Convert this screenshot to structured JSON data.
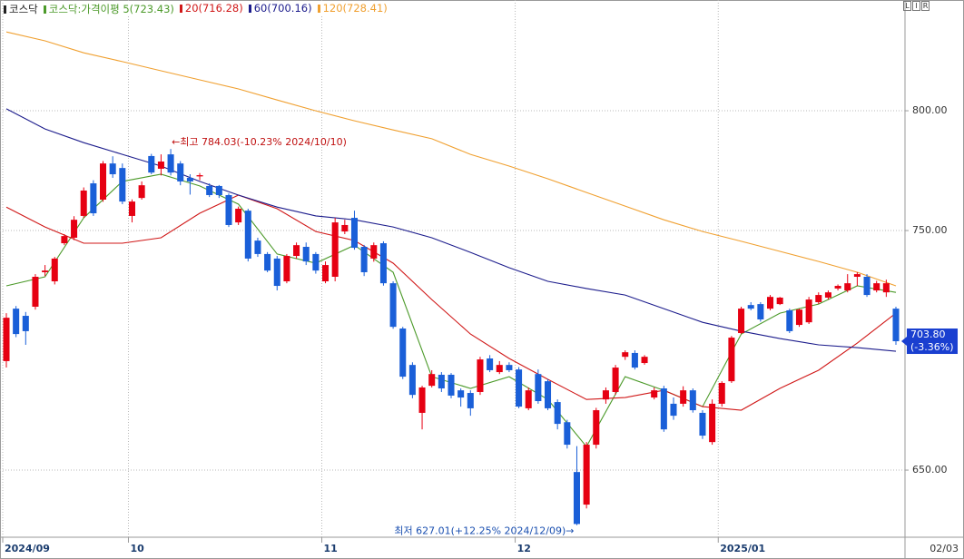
{
  "chart_data": {
    "type": "candlestick",
    "title": "코스닥",
    "toolbar": [
      "L",
      "I",
      "R"
    ],
    "categories": [
      "2024/09",
      null,
      null,
      null,
      null,
      null,
      null,
      null,
      null,
      null,
      null,
      null,
      null,
      "10",
      null,
      null,
      null,
      null,
      null,
      null,
      null,
      null,
      null,
      null,
      null,
      null,
      null,
      null,
      null,
      null,
      null,
      null,
      null,
      "11",
      null,
      null,
      null,
      null,
      null,
      null,
      null,
      null,
      null,
      null,
      null,
      null,
      null,
      null,
      null,
      null,
      null,
      null,
      null,
      "12",
      null,
      null,
      null,
      null,
      null,
      null,
      null,
      null,
      null,
      null,
      null,
      null,
      null,
      null,
      null,
      null,
      null,
      null,
      null,
      null,
      "2025/01",
      null,
      null,
      null,
      null,
      null,
      null,
      null,
      null,
      null,
      null,
      null,
      null,
      null,
      null,
      null,
      null,
      null,
      "02/03"
    ],
    "open": [
      695.5,
      717.4,
      714.4,
      718.2,
      732.6,
      728.8,
      744.7,
      747.0,
      756.1,
      769.7,
      762.9,
      778.0,
      776.1,
      756.1,
      763.6,
      781.1,
      775.8,
      781.8,
      778.0,
      772.0,
      772.6,
      768.6,
      768.6,
      764.8,
      753.4,
      758.3,
      745.8,
      740.2,
      738.3,
      728.8,
      739.4,
      743.2,
      740.2,
      728.8,
      730.7,
      749.6,
      755.3,
      743.2,
      738.3,
      744.7,
      728.0,
      709.1,
      693.9,
      673.9,
      685.2,
      689.8,
      689.8,
      683.3,
      682.2,
      682.6,
      696.6,
      690.9,
      693.9,
      692.0,
      675.8,
      690.1,
      687.1,
      678.4,
      670.0,
      649.2,
      635.6,
      660.6,
      679.5,
      682.6,
      697.3,
      698.9,
      694.7,
      680.3,
      684.1,
      677.7,
      677.7,
      683.3,
      673.9,
      661.7,
      677.7,
      687.1,
      707.2,
      718.9,
      719.3,
      717.4,
      719.3,
      716.7,
      710.6,
      711.7,
      720.1,
      722.0,
      725.8,
      725.0,
      730.7,
      730.7,
      725.0,
      724.2,
      717.4
    ],
    "high": [
      715.5,
      718.5,
      716,
      731.8,
      735.6,
      739,
      748.5,
      756,
      768,
      771,
      779,
      781,
      778,
      763,
      770.5,
      782,
      781.8,
      784.03,
      779,
      773.5,
      774,
      769.7,
      769,
      765.5,
      760,
      759.1,
      747,
      741,
      739.4,
      740.2,
      745,
      745,
      741,
      737.1,
      755.3,
      754.5,
      758.3,
      744,
      745,
      745.5,
      728.8,
      709.8,
      695,
      685.2,
      691.7,
      690.9,
      690.5,
      684.1,
      683.3,
      697.3,
      698,
      695.5,
      695,
      693,
      684.5,
      692,
      688,
      679.5,
      671,
      660,
      661.7,
      676,
      684.5,
      693.9,
      700,
      700,
      698,
      684.5,
      685.2,
      680.3,
      685,
      684.1,
      675,
      679.5,
      687.1,
      706,
      718.2,
      720.1,
      720.1,
      723.1,
      722.3,
      717.4,
      717.4,
      722.3,
      724.2,
      725,
      727.5,
      731.8,
      732.6,
      731.8,
      729,
      729.5,
      718.2
    ],
    "low": [
      692.8,
      705.5,
      702.3,
      717,
      731,
      727.5,
      743.9,
      746,
      755.3,
      756.1,
      762,
      772,
      761,
      753.4,
      762.9,
      773.5,
      773,
      773,
      768.9,
      765,
      771,
      764,
      763.6,
      751.5,
      752.3,
      737.1,
      739,
      732.6,
      725,
      728,
      738.3,
      735.6,
      732,
      728,
      728.8,
      748.5,
      742,
      731,
      737,
      727,
      709,
      688,
      680,
      667,
      684.5,
      682.6,
      680,
      676.5,
      672.7,
      681.4,
      690.9,
      690.1,
      690.9,
      675.8,
      675,
      677.7,
      675,
      667,
      659,
      627.01,
      634,
      659,
      677.7,
      681.4,
      696,
      692,
      694,
      679.5,
      666,
      671,
      676.5,
      674,
      663,
      660.6,
      676.5,
      686.4,
      706.8,
      716.7,
      712,
      716.7,
      718.9,
      707.2,
      709.8,
      711,
      719.3,
      721.2,
      725,
      724.2,
      726.9,
      722.3,
      724.2,
      722.3,
      702.3
    ],
    "close": [
      713.6,
      706.8,
      708.0,
      730.7,
      733.3,
      738.3,
      747.7,
      754.5,
      766.7,
      757.2,
      778.0,
      773.5,
      762.1,
      762.1,
      768.9,
      774.2,
      778.8,
      774.2,
      770.5,
      770.5,
      773.1,
      764.8,
      764.8,
      752.3,
      759.1,
      738.3,
      740.2,
      733.3,
      726.9,
      739.4,
      743.9,
      737.1,
      733.3,
      735.6,
      753.4,
      752.3,
      742.8,
      732.6,
      743.9,
      728.0,
      709.8,
      689.0,
      681.4,
      684.5,
      690.1,
      684.1,
      681.1,
      680.3,
      675.8,
      696.2,
      691.7,
      693.9,
      691.7,
      676.5,
      683.3,
      678.8,
      675.8,
      669.3,
      660.6,
      627.5,
      660.6,
      675.0,
      683.3,
      692.8,
      699.2,
      692.8,
      697.3,
      683.3,
      667.0,
      672.7,
      683.3,
      675.0,
      664.4,
      677.7,
      686.4,
      705.3,
      717.4,
      717.4,
      712.9,
      722.3,
      722.0,
      708.0,
      717.0,
      721.2,
      723.1,
      724.2,
      726.9,
      728.0,
      731.8,
      723.1,
      728.0,
      728.0,
      703.8
    ],
    "up_color": "#e60012",
    "down_color": "#1a5fd8",
    "series": [
      {
        "name": "코스닥:가격이평 5(723.43)",
        "color": "#4c9a2a",
        "x": [
          0,
          4,
          8,
          12,
          16,
          20,
          24,
          28,
          32,
          36,
          40,
          44,
          48,
          52,
          56,
          60,
          64,
          68,
          72,
          76,
          80,
          84,
          88,
          92
        ],
        "values": [
          726.9,
          730.7,
          755.3,
          770.5,
          773.5,
          768.6,
          761.0,
          740.2,
          736.4,
          743.9,
          732.6,
          689.0,
          684.1,
          689.0,
          679.5,
          659.8,
          689.0,
          683.3,
          676.5,
          706.8,
          715.5,
          719.3,
          726.9,
          724.2
        ]
      },
      {
        "name": "20(716.28)",
        "color": "#d01818",
        "x": [
          0,
          4,
          8,
          12,
          16,
          20,
          24,
          28,
          32,
          36,
          40,
          44,
          48,
          52,
          56,
          60,
          64,
          68,
          72,
          76,
          80,
          84,
          88,
          92
        ],
        "values": [
          759.8,
          751.5,
          744.7,
          744.7,
          747.0,
          757.2,
          764.8,
          759.1,
          749.6,
          745.8,
          736.4,
          721.2,
          706.8,
          696.6,
          687.9,
          679.5,
          680.3,
          683.3,
          676.5,
          675.0,
          684.1,
          691.7,
          703.0,
          715.5
        ]
      },
      {
        "name": "60(700.16)",
        "color": "#1c1c8c",
        "x": [
          0,
          4,
          8,
          12,
          16,
          20,
          24,
          28,
          32,
          36,
          40,
          44,
          48,
          52,
          56,
          60,
          64,
          68,
          72,
          76,
          80,
          84,
          88,
          92
        ],
        "values": [
          800.8,
          792.4,
          786.7,
          781.8,
          776.9,
          770.5,
          764.8,
          759.8,
          756.1,
          754.5,
          751.5,
          747.0,
          740.9,
          734.5,
          728.8,
          725.8,
          723.1,
          717.4,
          711.7,
          708.0,
          704.9,
          702.3,
          701.1,
          699.6
        ]
      },
      {
        "name": "120(728.41)",
        "color": "#f0a030",
        "x": [
          0,
          4,
          8,
          12,
          16,
          20,
          24,
          28,
          32,
          36,
          40,
          44,
          48,
          52,
          56,
          60,
          64,
          68,
          72,
          76,
          80,
          84,
          88,
          92
        ],
        "values": [
          832.9,
          829.2,
          824.2,
          820.5,
          816.7,
          812.9,
          809.1,
          804.5,
          800.0,
          795.8,
          792.0,
          788.3,
          781.8,
          776.9,
          771.6,
          765.9,
          760.2,
          754.5,
          749.6,
          745.5,
          741.3,
          737.1,
          732.6,
          726.9
        ]
      }
    ],
    "high_annotation": "←최고 784.03(-10.23% 2024/10/10)",
    "low_annotation": "최저 627.01(+12.25% 2024/12/09)→",
    "last_price_label": "703.80",
    "last_change_label": "(-3.36%)",
    "ylim": [
      623.5,
      837.9
    ],
    "yticks": [
      {
        "value": 800,
        "label": "800.00"
      },
      {
        "value": 750,
        "label": "750.00"
      },
      {
        "value": 650,
        "label": "650.00"
      }
    ],
    "grid": true
  }
}
